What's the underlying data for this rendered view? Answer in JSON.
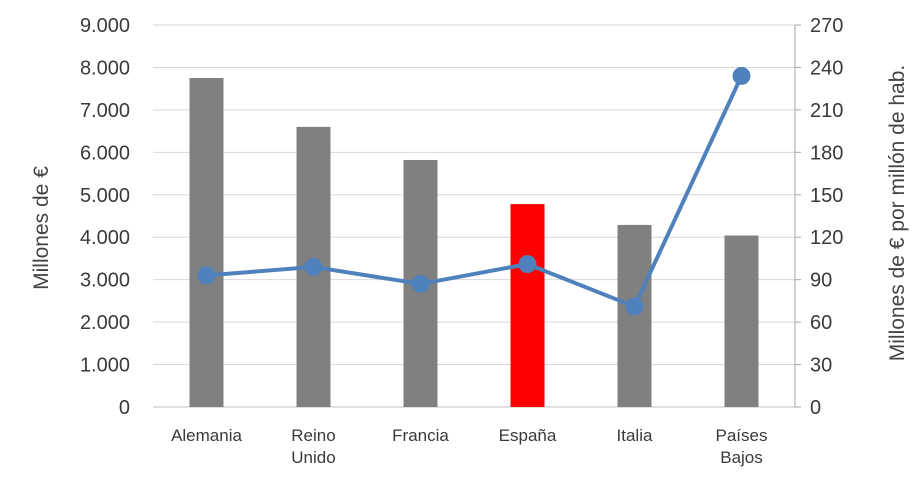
{
  "chart_data": {
    "type": "bar",
    "categories": [
      "Alemania",
      "Reino Unido",
      "Francia",
      "España",
      "Italia",
      "Países Bajos"
    ],
    "category_lines": [
      [
        "Alemania"
      ],
      [
        "Reino",
        "Unido"
      ],
      [
        "Francia"
      ],
      [
        "España"
      ],
      [
        "Italia"
      ],
      [
        "Países",
        "Bajos"
      ]
    ],
    "series": [
      {
        "type": "bar",
        "axis": "left",
        "values": [
          7750,
          6600,
          5820,
          4780,
          4290,
          4040
        ],
        "color": "#808080",
        "highlight": {
          "category": "España",
          "color": "#ff0000"
        }
      },
      {
        "type": "line",
        "axis": "right",
        "values": [
          93,
          99,
          87,
          101,
          71,
          234
        ],
        "color": "#4f81bd"
      }
    ],
    "ylabel": "Millones de €",
    "ylabel_right": "Millones de € por millón de hab.",
    "ylim": [
      0,
      9000
    ],
    "ylim_right": [
      0,
      270
    ],
    "yticks": [
      "0",
      "1.000",
      "2.000",
      "3.000",
      "4.000",
      "5.000",
      "6.000",
      "7.000",
      "8.000",
      "9.000"
    ],
    "yticks_right": [
      "0",
      "30",
      "60",
      "90",
      "120",
      "150",
      "180",
      "210",
      "240",
      "270"
    ],
    "grid": true,
    "legend": "none"
  }
}
